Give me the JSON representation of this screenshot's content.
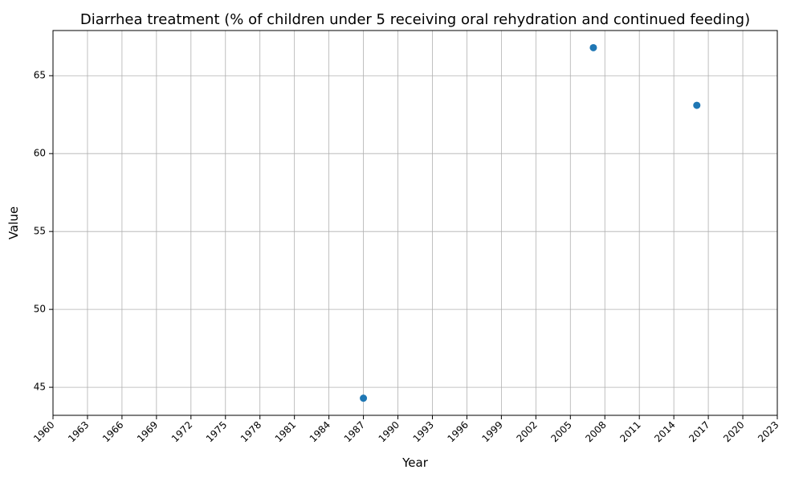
{
  "chart_data": {
    "type": "scatter",
    "title": "Diarrhea treatment (% of children under 5 receiving oral rehydration and continued feeding)",
    "xlabel": "Year",
    "ylabel": "Value",
    "xlim": [
      1960,
      2023
    ],
    "ylim": [
      43.2,
      67.9
    ],
    "x_ticks": [
      1960,
      1963,
      1966,
      1969,
      1972,
      1975,
      1978,
      1981,
      1984,
      1987,
      1990,
      1993,
      1996,
      1999,
      2002,
      2005,
      2008,
      2011,
      2014,
      2017,
      2020,
      2023
    ],
    "y_ticks": [
      45,
      50,
      55,
      60,
      65
    ],
    "grid": true,
    "marker_color": "#1f77b4",
    "points": [
      {
        "x": 1987,
        "y": 44.3
      },
      {
        "x": 2007,
        "y": 66.8
      },
      {
        "x": 2016,
        "y": 63.1
      }
    ]
  }
}
